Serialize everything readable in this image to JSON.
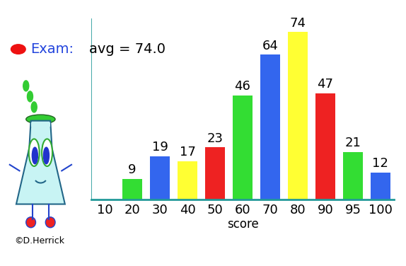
{
  "chart_data": {
    "type": "bar",
    "title": "Exam:",
    "subtitle": "avg = 74.0",
    "x_label": "score",
    "categories": [
      "10",
      "20",
      "30",
      "40",
      "50",
      "60",
      "70",
      "80",
      "90",
      "95",
      "100"
    ],
    "values": [
      null,
      9,
      19,
      17,
      23,
      46,
      64,
      74,
      47,
      21,
      12
    ],
    "colors": [
      null,
      "#33dd33",
      "#3366ee",
      "#ffff33",
      "#ee2222",
      "#33dd33",
      "#3366ee",
      "#ffff33",
      "#ee2222",
      "#33dd33",
      "#3366ee"
    ],
    "ylim": [
      0,
      80
    ],
    "yticks": [],
    "data_labels": true,
    "tick_labels": "x",
    "grid": false,
    "annotations": [
      "©D.Herrick"
    ]
  }
}
